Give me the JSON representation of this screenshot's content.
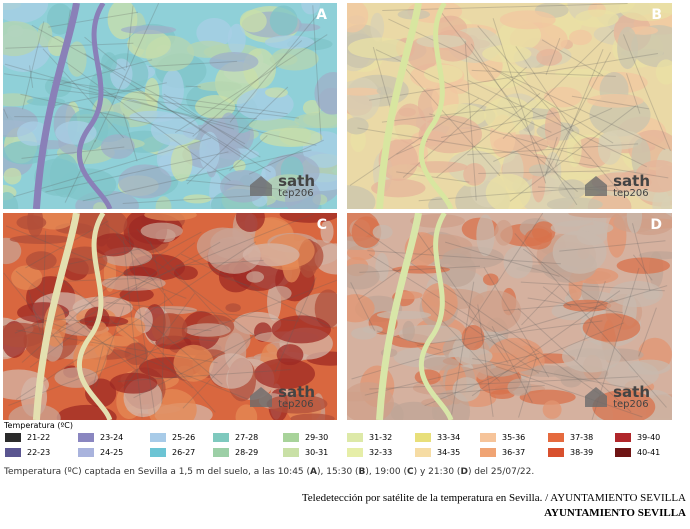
{
  "panels": [
    {
      "label": "A",
      "logo": "sath",
      "logo_sub": "tep206"
    },
    {
      "label": "B",
      "logo": "sath",
      "logo_sub": "tep206"
    },
    {
      "label": "C",
      "logo": "sath",
      "logo_sub": "tep206"
    },
    {
      "label": "D",
      "logo": "sath",
      "logo_sub": "tep206"
    }
  ],
  "legend": {
    "title": "Temperatura (ºC)",
    "items": [
      {
        "label": "21-22",
        "color": "#2b2b2b"
      },
      {
        "label": "22-23",
        "color": "#5a5590"
      },
      {
        "label": "23-24",
        "color": "#8a86c0"
      },
      {
        "label": "24-25",
        "color": "#a9b3dd"
      },
      {
        "label": "25-26",
        "color": "#a8cbe8"
      },
      {
        "label": "26-27",
        "color": "#6cc4d4"
      },
      {
        "label": "27-28",
        "color": "#7fc9be"
      },
      {
        "label": "28-29",
        "color": "#9ccfa6"
      },
      {
        "label": "29-30",
        "color": "#a8d39a"
      },
      {
        "label": "30-31",
        "color": "#c9e0a6"
      },
      {
        "label": "31-32",
        "color": "#dde9a8"
      },
      {
        "label": "32-33",
        "color": "#e6eea8"
      },
      {
        "label": "33-34",
        "color": "#e8df7a"
      },
      {
        "label": "34-35",
        "color": "#f6dca4"
      },
      {
        "label": "35-36",
        "color": "#f6c49a"
      },
      {
        "label": "36-37",
        "color": "#f0a474"
      },
      {
        "label": "37-38",
        "color": "#e56a3e"
      },
      {
        "label": "38-39",
        "color": "#d8502e"
      },
      {
        "label": "39-40",
        "color": "#b0262a"
      },
      {
        "label": "40-41",
        "color": "#6e1414"
      }
    ]
  },
  "caption": [
    {
      "text": "Temperatura (ºC) captada en Sevilla a 1,5 m del suelo, a las 10:45 (",
      "bold": false
    },
    {
      "text": "A",
      "bold": true
    },
    {
      "text": "), 15:30 (",
      "bold": false
    },
    {
      "text": "B",
      "bold": true
    },
    {
      "text": "), 19:00 (",
      "bold": false
    },
    {
      "text": "C",
      "bold": true
    },
    {
      "text": ")  y 21:30 (",
      "bold": false
    },
    {
      "text": "D",
      "bold": true
    },
    {
      "text": ") del 25/07/22.",
      "bold": false
    }
  ],
  "credit": "Teledetección por satélite de la temperatura en Sevilla. / AYUNTAMIENTO SEVILLA",
  "credit_author": "AYUNTAMIENTO SEVILLA"
}
